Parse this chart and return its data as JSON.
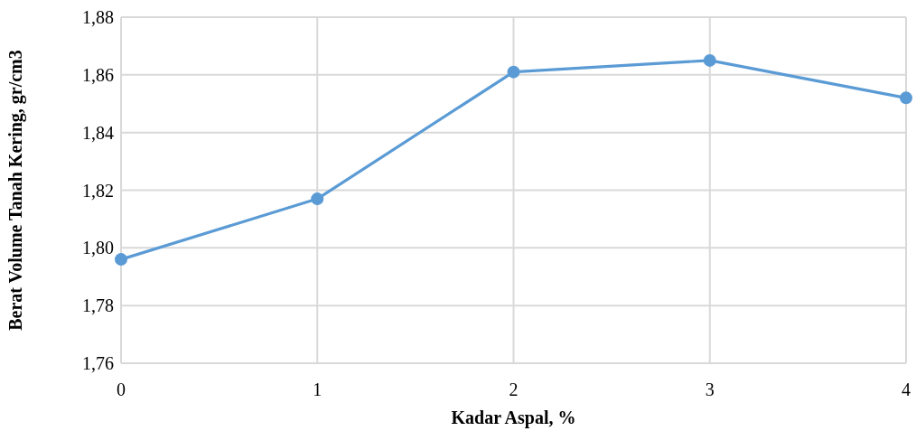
{
  "chart_data": {
    "type": "line",
    "xlabel": "Kadar Aspal, %",
    "ylabel": "Berat Volume Tanah Kering, gr/cm3",
    "x": [
      0,
      1,
      2,
      3,
      4
    ],
    "series": [
      {
        "color": "#5b9bd5",
        "values": [
          1.796,
          1.817,
          1.861,
          1.865,
          1.852
        ]
      }
    ],
    "xlim": [
      0,
      4
    ],
    "xticks": [
      0,
      1,
      2,
      3,
      4
    ],
    "ylim": [
      1.76,
      1.88
    ],
    "yticks": [
      {
        "value": 1.76,
        "label": "1,76"
      },
      {
        "value": 1.78,
        "label": "1,78"
      },
      {
        "value": 1.8,
        "label": "1,80"
      },
      {
        "value": 1.82,
        "label": "1,82"
      },
      {
        "value": 1.84,
        "label": "1,84"
      },
      {
        "value": 1.86,
        "label": "1,86"
      },
      {
        "value": 1.88,
        "label": "1,88"
      }
    ],
    "grid": true,
    "marker": "circle",
    "line_style": "solid"
  }
}
